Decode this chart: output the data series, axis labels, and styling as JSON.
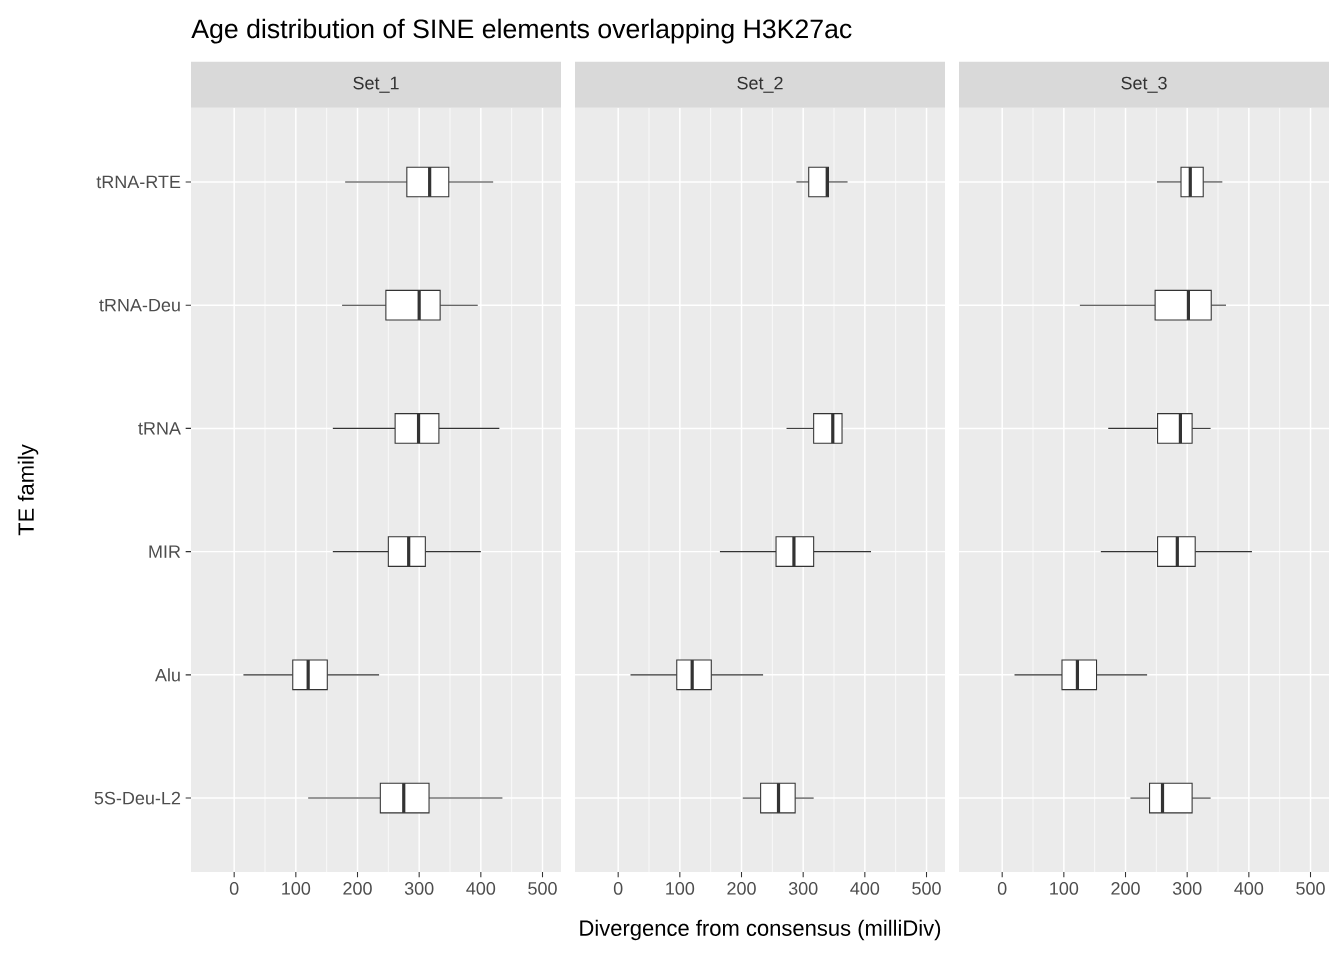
{
  "chart_data": [
    {
      "type": "box",
      "orientation": "horizontal",
      "title": "Age distribution of SINE elements overlapping H3K27ac",
      "subtitle": "Set_1",
      "ylabel": "TE family",
      "color": "#333333",
      "categories": [
        "tRNA-RTE",
        "tRNA-Deu",
        "tRNA",
        "MIR",
        "Alu",
        "5S-Deu-L2"
      ],
      "boxes": [
        {
          "low": 180,
          "q1": 280,
          "median": 317,
          "q3": 348,
          "high": 420
        },
        {
          "low": 175,
          "q1": 246,
          "median": 300,
          "q3": 334,
          "high": 395
        },
        {
          "low": 160,
          "q1": 261,
          "median": 299,
          "q3": 332,
          "high": 430
        },
        {
          "low": 160,
          "q1": 250,
          "median": 283,
          "q3": 310,
          "high": 400
        },
        {
          "low": 15,
          "q1": 95,
          "median": 120,
          "q3": 151,
          "high": 235
        },
        {
          "low": 120,
          "q1": 237,
          "median": 275,
          "q3": 316,
          "high": 435
        }
      ],
      "xlim": [
        -70,
        530
      ],
      "xticks": [
        0,
        100,
        200,
        300,
        400,
        500
      ],
      "grid": true
    },
    {
      "type": "box",
      "orientation": "horizontal",
      "subtitle": "Set_2",
      "xlabel": "Divergence from consensus (milliDiv)",
      "color": "#333333",
      "categories": [
        null,
        null,
        null,
        null,
        null,
        null
      ],
      "boxes": [
        {
          "low": 289,
          "q1": 309,
          "median": 339,
          "q3": 341,
          "high": 372
        },
        null,
        {
          "low": 273,
          "q1": 317,
          "median": 348,
          "q3": 363,
          "high": 363
        },
        {
          "low": 165,
          "q1": 256,
          "median": 285,
          "q3": 317,
          "high": 410
        },
        {
          "low": 20,
          "q1": 95,
          "median": 120,
          "q3": 151,
          "high": 235
        },
        {
          "low": 202,
          "q1": 231,
          "median": 260,
          "q3": 287,
          "high": 317
        }
      ],
      "xlim": [
        -70,
        530
      ],
      "xticks": [
        0,
        100,
        200,
        300,
        400,
        500
      ],
      "grid": true,
      "tick_labels": "x"
    },
    {
      "type": "box",
      "orientation": "horizontal",
      "subtitle": "Set_3",
      "color": "#333333",
      "categories": [
        null,
        null,
        null,
        null,
        null,
        null
      ],
      "boxes": [
        {
          "low": 251,
          "q1": 290,
          "median": 305,
          "q3": 326,
          "high": 357
        },
        {
          "low": 126,
          "q1": 248,
          "median": 302,
          "q3": 339,
          "high": 363
        },
        {
          "low": 172,
          "q1": 252,
          "median": 289,
          "q3": 308,
          "high": 338
        },
        {
          "low": 160,
          "q1": 252,
          "median": 284,
          "q3": 313,
          "high": 405
        },
        {
          "low": 20,
          "q1": 97,
          "median": 122,
          "q3": 153,
          "high": 235
        },
        {
          "low": 208,
          "q1": 239,
          "median": 260,
          "q3": 308,
          "high": 338
        }
      ],
      "xlim": [
        -70,
        530
      ],
      "xticks": [
        0,
        100,
        200,
        300,
        400,
        500
      ],
      "grid": true,
      "tick_labels": "x"
    }
  ]
}
